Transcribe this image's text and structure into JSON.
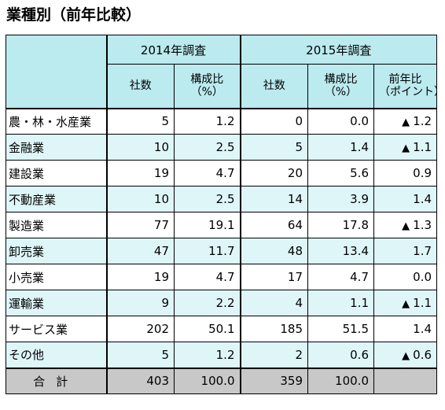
{
  "title": "業種別（前年比較）",
  "headers": {
    "survey_2014": "2014年調査",
    "survey_2015": "2015年調査",
    "companies": "社数",
    "ratio_line1": "構成比",
    "ratio_line2": "（%）",
    "yoy_line1": "前年比",
    "yoy_line2": "（ポイント）"
  },
  "rows": [
    {
      "industry": "農・林・水産業",
      "c2014": "5",
      "r2014": "1.2",
      "c2015": "0",
      "r2015": "0.0",
      "yoy_sign": "▲",
      "yoy": "1.2"
    },
    {
      "industry": "金融業",
      "c2014": "10",
      "r2014": "2.5",
      "c2015": "5",
      "r2015": "1.4",
      "yoy_sign": "▲",
      "yoy": "1.1"
    },
    {
      "industry": "建設業",
      "c2014": "19",
      "r2014": "4.7",
      "c2015": "20",
      "r2015": "5.6",
      "yoy_sign": "",
      "yoy": "0.9"
    },
    {
      "industry": "不動産業",
      "c2014": "10",
      "r2014": "2.5",
      "c2015": "14",
      "r2015": "3.9",
      "yoy_sign": "",
      "yoy": "1.4"
    },
    {
      "industry": "製造業",
      "c2014": "77",
      "r2014": "19.1",
      "c2015": "64",
      "r2015": "17.8",
      "yoy_sign": "▲",
      "yoy": "1.3"
    },
    {
      "industry": "卸売業",
      "c2014": "47",
      "r2014": "11.7",
      "c2015": "48",
      "r2015": "13.4",
      "yoy_sign": "",
      "yoy": "1.7"
    },
    {
      "industry": "小売業",
      "c2014": "19",
      "r2014": "4.7",
      "c2015": "17",
      "r2015": "4.7",
      "yoy_sign": "",
      "yoy": "0.0"
    },
    {
      "industry": "運輸業",
      "c2014": "9",
      "r2014": "2.2",
      "c2015": "4",
      "r2015": "1.1",
      "yoy_sign": "▲",
      "yoy": "1.1"
    },
    {
      "industry": "サービス業",
      "c2014": "202",
      "r2014": "50.1",
      "c2015": "185",
      "r2015": "51.5",
      "yoy_sign": "",
      "yoy": "1.4"
    },
    {
      "industry": "その他",
      "c2014": "5",
      "r2014": "1.2",
      "c2015": "2",
      "r2015": "0.6",
      "yoy_sign": "▲",
      "yoy": "0.6"
    }
  ],
  "total": {
    "label": "合計",
    "c2014": "403",
    "r2014": "100.0",
    "c2015": "359",
    "r2015": "100.0",
    "yoy": ""
  },
  "colors": {
    "header_bg": "#bbeaef",
    "alt_row_bg": "#dff6f9",
    "total_bg": "#c8c8c8"
  }
}
